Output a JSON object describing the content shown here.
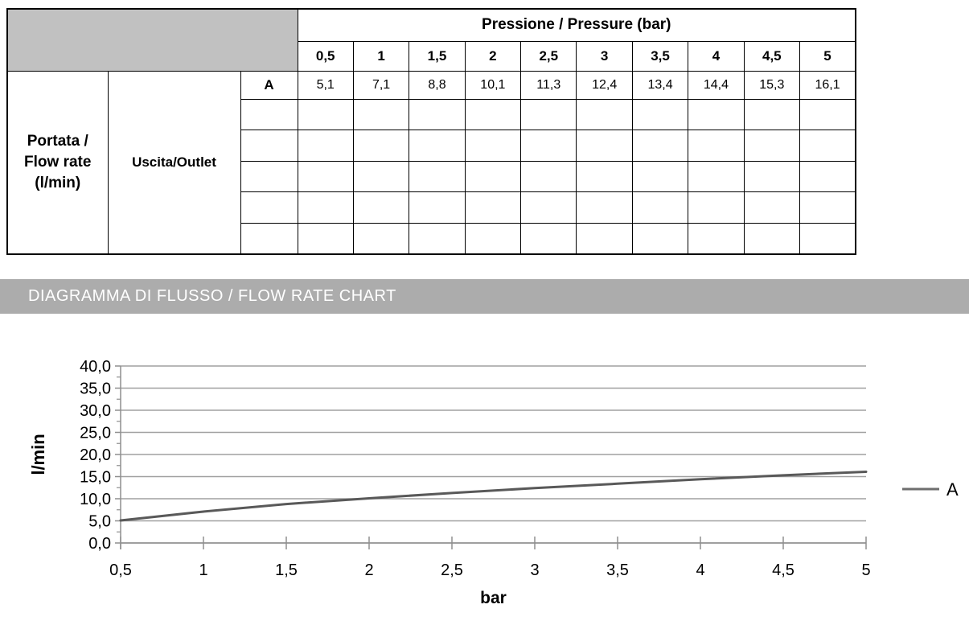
{
  "table": {
    "header_title": "Pressione / Pressure (bar)",
    "pressure_columns": [
      "0,5",
      "1",
      "1,5",
      "2",
      "2,5",
      "3",
      "3,5",
      "4",
      "4,5",
      "5"
    ],
    "flow_rate_label": "Portata /\nFlow rate\n(l/min)",
    "outlet_label": "Uscita/Outlet",
    "rows": [
      {
        "label": "A",
        "values": [
          "5,1",
          "7,1",
          "8,8",
          "10,1",
          "11,3",
          "12,4",
          "13,4",
          "14,4",
          "15,3",
          "16,1"
        ]
      }
    ],
    "empty_row_count": 5
  },
  "banner": {
    "title": "DIAGRAMMA DI FLUSSO / FLOW RATE CHART"
  },
  "chart_data": {
    "type": "line",
    "x": [
      0.5,
      1,
      1.5,
      2,
      2.5,
      3,
      3.5,
      4,
      4.5,
      5
    ],
    "x_tick_labels": [
      "0,5",
      "1",
      "1,5",
      "2",
      "2,5",
      "3",
      "3,5",
      "4",
      "4,5",
      "5"
    ],
    "series": [
      {
        "name": "A",
        "values": [
          5.1,
          7.1,
          8.8,
          10.1,
          11.3,
          12.4,
          13.4,
          14.4,
          15.3,
          16.1
        ],
        "color": "#595959"
      }
    ],
    "xlabel": "bar",
    "ylabel": "l/min",
    "xlim": [
      0.5,
      5
    ],
    "ylim": [
      0,
      40
    ],
    "y_major_step": 5,
    "y_minor_step": 2.5,
    "y_tick_labels": [
      "0,0",
      "5,0",
      "10,0",
      "15,0",
      "20,0",
      "25,0",
      "30,0",
      "35,0",
      "40,0"
    ],
    "grid": "horizontal",
    "legend_position": "right",
    "grid_color": "#a0a0a0",
    "axis_color": "#8f8f8f",
    "legend_line_color": "#6e6e6e"
  }
}
